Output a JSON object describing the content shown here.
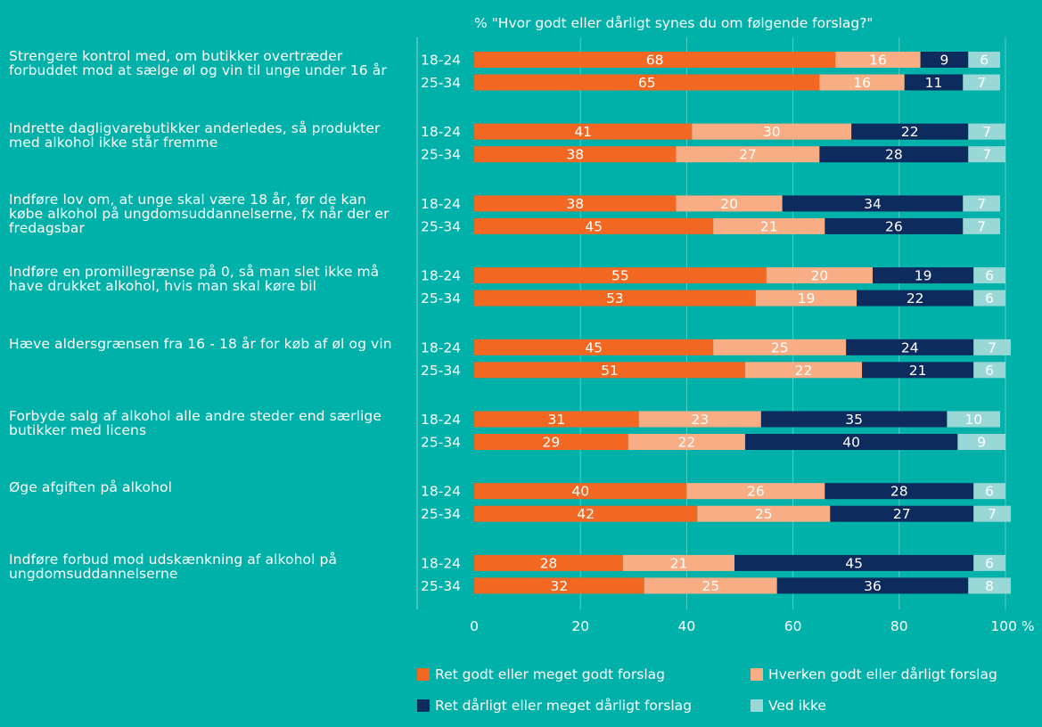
{
  "chart_data": {
    "type": "bar",
    "orientation": "horizontal",
    "stacked": true,
    "title": "% \"Hvor godt eller dårligt synes du om følgende forslag?\"",
    "xlim": [
      0,
      100
    ],
    "x_ticks": [
      "0",
      "20",
      "40",
      "60",
      "80",
      "100 %"
    ],
    "grid": true,
    "legend_position": "bottom",
    "series": [
      {
        "name": "Ret godt eller meget godt forslag",
        "color": "#f26722"
      },
      {
        "name": "Hverken godt eller dårligt forslag",
        "color": "#f8ad84"
      },
      {
        "name": "Ret dårligt eller meget dårligt forslag",
        "color": "#0d2b5c"
      },
      {
        "name": "Ved ikke",
        "color": "#9ad8d7"
      }
    ],
    "groups": [
      {
        "question": "Strengere kontrol med, om butikker overtræder forbuddet mod at sælge øl og vin til unge under 16 år",
        "rows": [
          {
            "age": "18-24",
            "values": [
              68,
              16,
              9,
              6
            ]
          },
          {
            "age": "25-34",
            "values": [
              65,
              16,
              11,
              7
            ]
          }
        ]
      },
      {
        "question": "Indrette dagligvarebutikker anderledes, så produkter med alkohol ikke står fremme",
        "rows": [
          {
            "age": "18-24",
            "values": [
              41,
              30,
              22,
              7
            ]
          },
          {
            "age": "25-34",
            "values": [
              38,
              27,
              28,
              7
            ]
          }
        ]
      },
      {
        "question": "Indføre lov om, at unge skal være 18 år, før de kan købe alkohol på ungdomsuddannelserne, fx når der er fredagsbar",
        "rows": [
          {
            "age": "18-24",
            "values": [
              38,
              20,
              34,
              7
            ]
          },
          {
            "age": "25-34",
            "values": [
              45,
              21,
              26,
              7
            ]
          }
        ]
      },
      {
        "question": "Indføre en promillegrænse på 0, så man slet ikke må have drukket alkohol, hvis man skal køre bil",
        "rows": [
          {
            "age": "18-24",
            "values": [
              55,
              20,
              19,
              6
            ]
          },
          {
            "age": "25-34",
            "values": [
              53,
              19,
              22,
              6
            ]
          }
        ]
      },
      {
        "question": "Hæve aldersgrænsen fra 16 - 18 år for køb af øl og vin",
        "rows": [
          {
            "age": "18-24",
            "values": [
              45,
              25,
              24,
              7
            ]
          },
          {
            "age": "25-34",
            "values": [
              51,
              22,
              21,
              6
            ]
          }
        ]
      },
      {
        "question": "Forbyde salg af alkohol alle andre steder end særlige butikker med licens",
        "rows": [
          {
            "age": "18-24",
            "values": [
              31,
              23,
              35,
              10
            ]
          },
          {
            "age": "25-34",
            "values": [
              29,
              22,
              40,
              9
            ]
          }
        ]
      },
      {
        "question": "Øge afgiften på alkohol",
        "rows": [
          {
            "age": "18-24",
            "values": [
              40,
              26,
              28,
              6
            ]
          },
          {
            "age": "25-34",
            "values": [
              42,
              25,
              27,
              7
            ]
          }
        ]
      },
      {
        "question": "Indføre forbud mod udskænkning af alkohol på ungdomsuddannelserne",
        "rows": [
          {
            "age": "18-24",
            "values": [
              28,
              21,
              45,
              6
            ]
          },
          {
            "age": "25-34",
            "values": [
              32,
              25,
              36,
              8
            ]
          }
        ]
      }
    ]
  }
}
